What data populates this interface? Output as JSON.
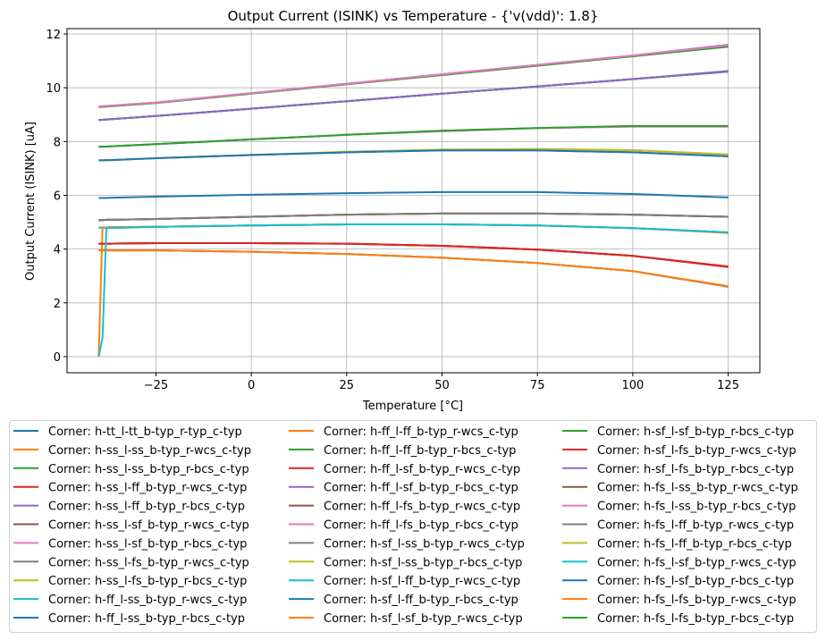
{
  "chart_data": {
    "type": "line",
    "title": "Output Current (ISINK) vs Temperature - {'v(vdd)': 1.8}",
    "xlabel": "Temperature [°C]",
    "ylabel": "Output Current (ISINK) [uA]",
    "xlim": [
      -48.3,
      133.3
    ],
    "ylim": [
      -0.6,
      12.2
    ],
    "xticks": [
      -25,
      0,
      25,
      50,
      75,
      100,
      125
    ],
    "yticks": [
      0,
      2,
      4,
      6,
      8,
      10,
      12
    ],
    "grid": true,
    "legend_placement": "bottom, below plot, 3 columns",
    "x": [
      -40,
      -39,
      -38,
      -37,
      -25,
      0,
      25,
      50,
      75,
      100,
      125
    ],
    "series": [
      {
        "name": "Corner: h-tt_l-tt_b-typ_r-typ_c-typ",
        "color": "#1f77b4",
        "values": [
          5.9,
          5.9,
          5.9,
          5.91,
          5.95,
          6.02,
          6.08,
          6.12,
          6.12,
          6.05,
          5.92
        ]
      },
      {
        "name": "Corner: h-ss_l-ss_b-typ_r-wcs_c-typ",
        "color": "#ff7f0e",
        "values": [
          4.8,
          4.8,
          4.8,
          4.81,
          4.83,
          4.88,
          4.92,
          4.92,
          4.88,
          4.78,
          4.62
        ]
      },
      {
        "name": "Corner: h-ss_l-ss_b-typ_r-bcs_c-typ",
        "color": "#2ca02c",
        "values": [
          7.8,
          7.81,
          7.81,
          7.82,
          7.9,
          8.08,
          8.25,
          8.4,
          8.5,
          8.57,
          8.57
        ]
      },
      {
        "name": "Corner: h-ss_l-ff_b-typ_r-wcs_c-typ",
        "color": "#d62728",
        "values": [
          4.2,
          4.2,
          4.2,
          4.2,
          4.22,
          4.22,
          4.2,
          4.12,
          3.98,
          3.75,
          3.35
        ]
      },
      {
        "name": "Corner: h-ss_l-ff_b-typ_r-bcs_c-typ",
        "color": "#9467bd",
        "values": [
          7.3,
          7.3,
          7.31,
          7.31,
          7.38,
          7.5,
          7.6,
          7.67,
          7.67,
          7.6,
          7.45
        ]
      },
      {
        "name": "Corner: h-ss_l-sf_b-typ_r-wcs_c-typ",
        "color": "#8c564b",
        "values": [
          5.08,
          5.08,
          5.09,
          5.09,
          5.12,
          5.2,
          5.28,
          5.32,
          5.32,
          5.28,
          5.2
        ]
      },
      {
        "name": "Corner: h-ss_l-sf_b-typ_r-bcs_c-typ",
        "color": "#e377c2",
        "values": [
          9.3,
          9.31,
          9.32,
          9.33,
          9.45,
          9.8,
          10.15,
          10.5,
          10.85,
          11.2,
          11.58
        ]
      },
      {
        "name": "Corner: h-ss_l-fs_b-typ_r-wcs_c-typ",
        "color": "#7f7f7f",
        "values": [
          3.95,
          3.95,
          3.95,
          3.95,
          3.95,
          3.9,
          3.82,
          3.68,
          3.48,
          3.18,
          2.6
        ]
      },
      {
        "name": "Corner: h-ss_l-fs_b-typ_r-bcs_c-typ",
        "color": "#bcbd22",
        "values": [
          7.3,
          7.3,
          7.31,
          7.31,
          7.38,
          7.5,
          7.6,
          7.7,
          7.72,
          7.68,
          7.52
        ]
      },
      {
        "name": "Corner: h-ff_l-ss_b-typ_r-wcs_c-typ",
        "color": "#17becf",
        "values": [
          4.8,
          4.8,
          4.8,
          4.81,
          4.83,
          4.88,
          4.92,
          4.92,
          4.88,
          4.78,
          4.62
        ]
      },
      {
        "name": "Corner: h-ff_l-ss_b-typ_r-bcs_c-typ",
        "color": "#1f77b4",
        "values": [
          8.8,
          8.81,
          8.82,
          8.83,
          8.95,
          9.22,
          9.5,
          9.78,
          10.05,
          10.32,
          10.6
        ]
      },
      {
        "name": "Corner: h-ff_l-ff_b-typ_r-wcs_c-typ",
        "color": "#ff7f0e",
        "values": [
          4.2,
          4.2,
          4.2,
          4.2,
          4.22,
          4.22,
          4.2,
          4.12,
          3.98,
          3.75,
          3.35
        ]
      },
      {
        "name": "Corner: h-ff_l-ff_b-typ_r-bcs_c-typ",
        "color": "#2ca02c",
        "values": [
          8.8,
          8.81,
          8.82,
          8.83,
          8.95,
          9.22,
          9.5,
          9.78,
          10.05,
          10.32,
          10.6
        ]
      },
      {
        "name": "Corner: h-ff_l-sf_b-typ_r-wcs_c-typ",
        "color": "#d62728",
        "values": [
          4.2,
          4.2,
          4.2,
          4.2,
          4.22,
          4.22,
          4.2,
          4.12,
          3.98,
          3.75,
          3.35
        ]
      },
      {
        "name": "Corner: h-ff_l-sf_b-typ_r-bcs_c-typ",
        "color": "#9467bd",
        "values": [
          9.3,
          9.31,
          9.32,
          9.33,
          9.45,
          9.8,
          10.15,
          10.5,
          10.85,
          11.2,
          11.6
        ]
      },
      {
        "name": "Corner: h-ff_l-fs_b-typ_r-wcs_c-typ",
        "color": "#8c564b",
        "values": [
          5.08,
          5.08,
          5.09,
          5.09,
          5.12,
          5.2,
          5.28,
          5.32,
          5.32,
          5.28,
          5.2
        ]
      },
      {
        "name": "Corner: h-ff_l-fs_b-typ_r-bcs_c-typ",
        "color": "#e377c2",
        "values": [
          7.8,
          7.81,
          7.81,
          7.82,
          7.9,
          8.08,
          8.25,
          8.38,
          8.5,
          8.55,
          8.55
        ]
      },
      {
        "name": "Corner: h-sf_l-ss_b-typ_r-wcs_c-typ",
        "color": "#7f7f7f",
        "values": [
          3.95,
          3.95,
          3.95,
          3.95,
          3.95,
          3.9,
          3.82,
          3.68,
          3.48,
          3.18,
          2.6
        ]
      },
      {
        "name": "Corner: h-sf_l-ss_b-typ_r-bcs_c-typ",
        "color": "#bcbd22",
        "values": [
          9.28,
          9.29,
          9.3,
          9.31,
          9.43,
          9.78,
          10.13,
          10.47,
          10.82,
          11.17,
          11.53
        ]
      },
      {
        "name": "Corner: h-sf_l-ff_b-typ_r-wcs_c-typ",
        "color": "#17becf",
        "values": [
          4.8,
          4.8,
          4.8,
          4.81,
          4.83,
          4.88,
          4.92,
          4.92,
          4.88,
          4.78,
          4.62
        ]
      },
      {
        "name": "Corner: h-sf_l-ff_b-typ_r-bcs_c-typ",
        "color": "#1f77b4",
        "values": [
          8.8,
          8.81,
          8.82,
          8.83,
          8.95,
          9.22,
          9.5,
          9.78,
          10.05,
          10.32,
          10.62
        ]
      },
      {
        "name": "Corner: h-sf_l-sf_b-typ_r-wcs_c-typ",
        "color": "#ff7f0e",
        "values": [
          0.0,
          4.8,
          4.8,
          4.81,
          4.83,
          4.88,
          4.92,
          4.92,
          4.88,
          4.78,
          4.6
        ]
      },
      {
        "name": "Corner: h-sf_l-sf_b-typ_r-bcs_c-typ",
        "color": "#2ca02c",
        "values": [
          9.28,
          9.29,
          9.3,
          9.31,
          9.43,
          9.78,
          10.13,
          10.47,
          10.82,
          11.17,
          11.53
        ]
      },
      {
        "name": "Corner: h-sf_l-fs_b-typ_r-wcs_c-typ",
        "color": "#d62728",
        "values": [
          4.2,
          4.2,
          4.2,
          4.2,
          4.22,
          4.22,
          4.2,
          4.12,
          3.98,
          3.75,
          3.33
        ]
      },
      {
        "name": "Corner: h-sf_l-fs_b-typ_r-bcs_c-typ",
        "color": "#9467bd",
        "values": [
          8.8,
          8.81,
          8.82,
          8.83,
          8.95,
          9.22,
          9.5,
          9.78,
          10.05,
          10.32,
          10.6
        ]
      },
      {
        "name": "Corner: h-fs_l-ss_b-typ_r-wcs_c-typ",
        "color": "#8c564b",
        "values": [
          5.08,
          5.08,
          5.09,
          5.09,
          5.12,
          5.2,
          5.28,
          5.32,
          5.32,
          5.28,
          5.2
        ]
      },
      {
        "name": "Corner: h-fs_l-ss_b-typ_r-bcs_c-typ",
        "color": "#e377c2",
        "values": [
          9.3,
          9.31,
          9.32,
          9.33,
          9.45,
          9.8,
          10.15,
          10.5,
          10.85,
          11.2,
          11.58
        ]
      },
      {
        "name": "Corner: h-fs_l-ff_b-typ_r-wcs_c-typ",
        "color": "#7f7f7f",
        "values": [
          5.08,
          5.08,
          5.09,
          5.09,
          5.12,
          5.2,
          5.28,
          5.32,
          5.32,
          5.28,
          5.2
        ]
      },
      {
        "name": "Corner: h-fs_l-ff_b-typ_r-bcs_c-typ",
        "color": "#bcbd22",
        "values": [
          7.3,
          7.3,
          7.31,
          7.31,
          7.38,
          7.5,
          7.62,
          7.7,
          7.72,
          7.68,
          7.52
        ]
      },
      {
        "name": "Corner: h-fs_l-sf_b-typ_r-wcs_c-typ",
        "color": "#17becf",
        "values": [
          0.0,
          0.7,
          4.8,
          4.78,
          4.83,
          4.88,
          4.92,
          4.92,
          4.88,
          4.78,
          4.62
        ]
      },
      {
        "name": "Corner: h-fs_l-sf_b-typ_r-bcs_c-typ",
        "color": "#1f77b4",
        "values": [
          7.3,
          7.3,
          7.31,
          7.31,
          7.38,
          7.5,
          7.6,
          7.67,
          7.67,
          7.6,
          7.45
        ]
      },
      {
        "name": "Corner: h-fs_l-fs_b-typ_r-wcs_c-typ",
        "color": "#ff7f0e",
        "values": [
          3.95,
          3.95,
          3.95,
          3.95,
          3.95,
          3.9,
          3.82,
          3.68,
          3.48,
          3.18,
          2.62
        ]
      },
      {
        "name": "Corner: h-fs_l-fs_b-typ_r-bcs_c-typ",
        "color": "#2ca02c",
        "values": [
          7.8,
          7.81,
          7.81,
          7.82,
          7.9,
          8.08,
          8.25,
          8.4,
          8.5,
          8.58,
          8.58
        ]
      }
    ]
  }
}
